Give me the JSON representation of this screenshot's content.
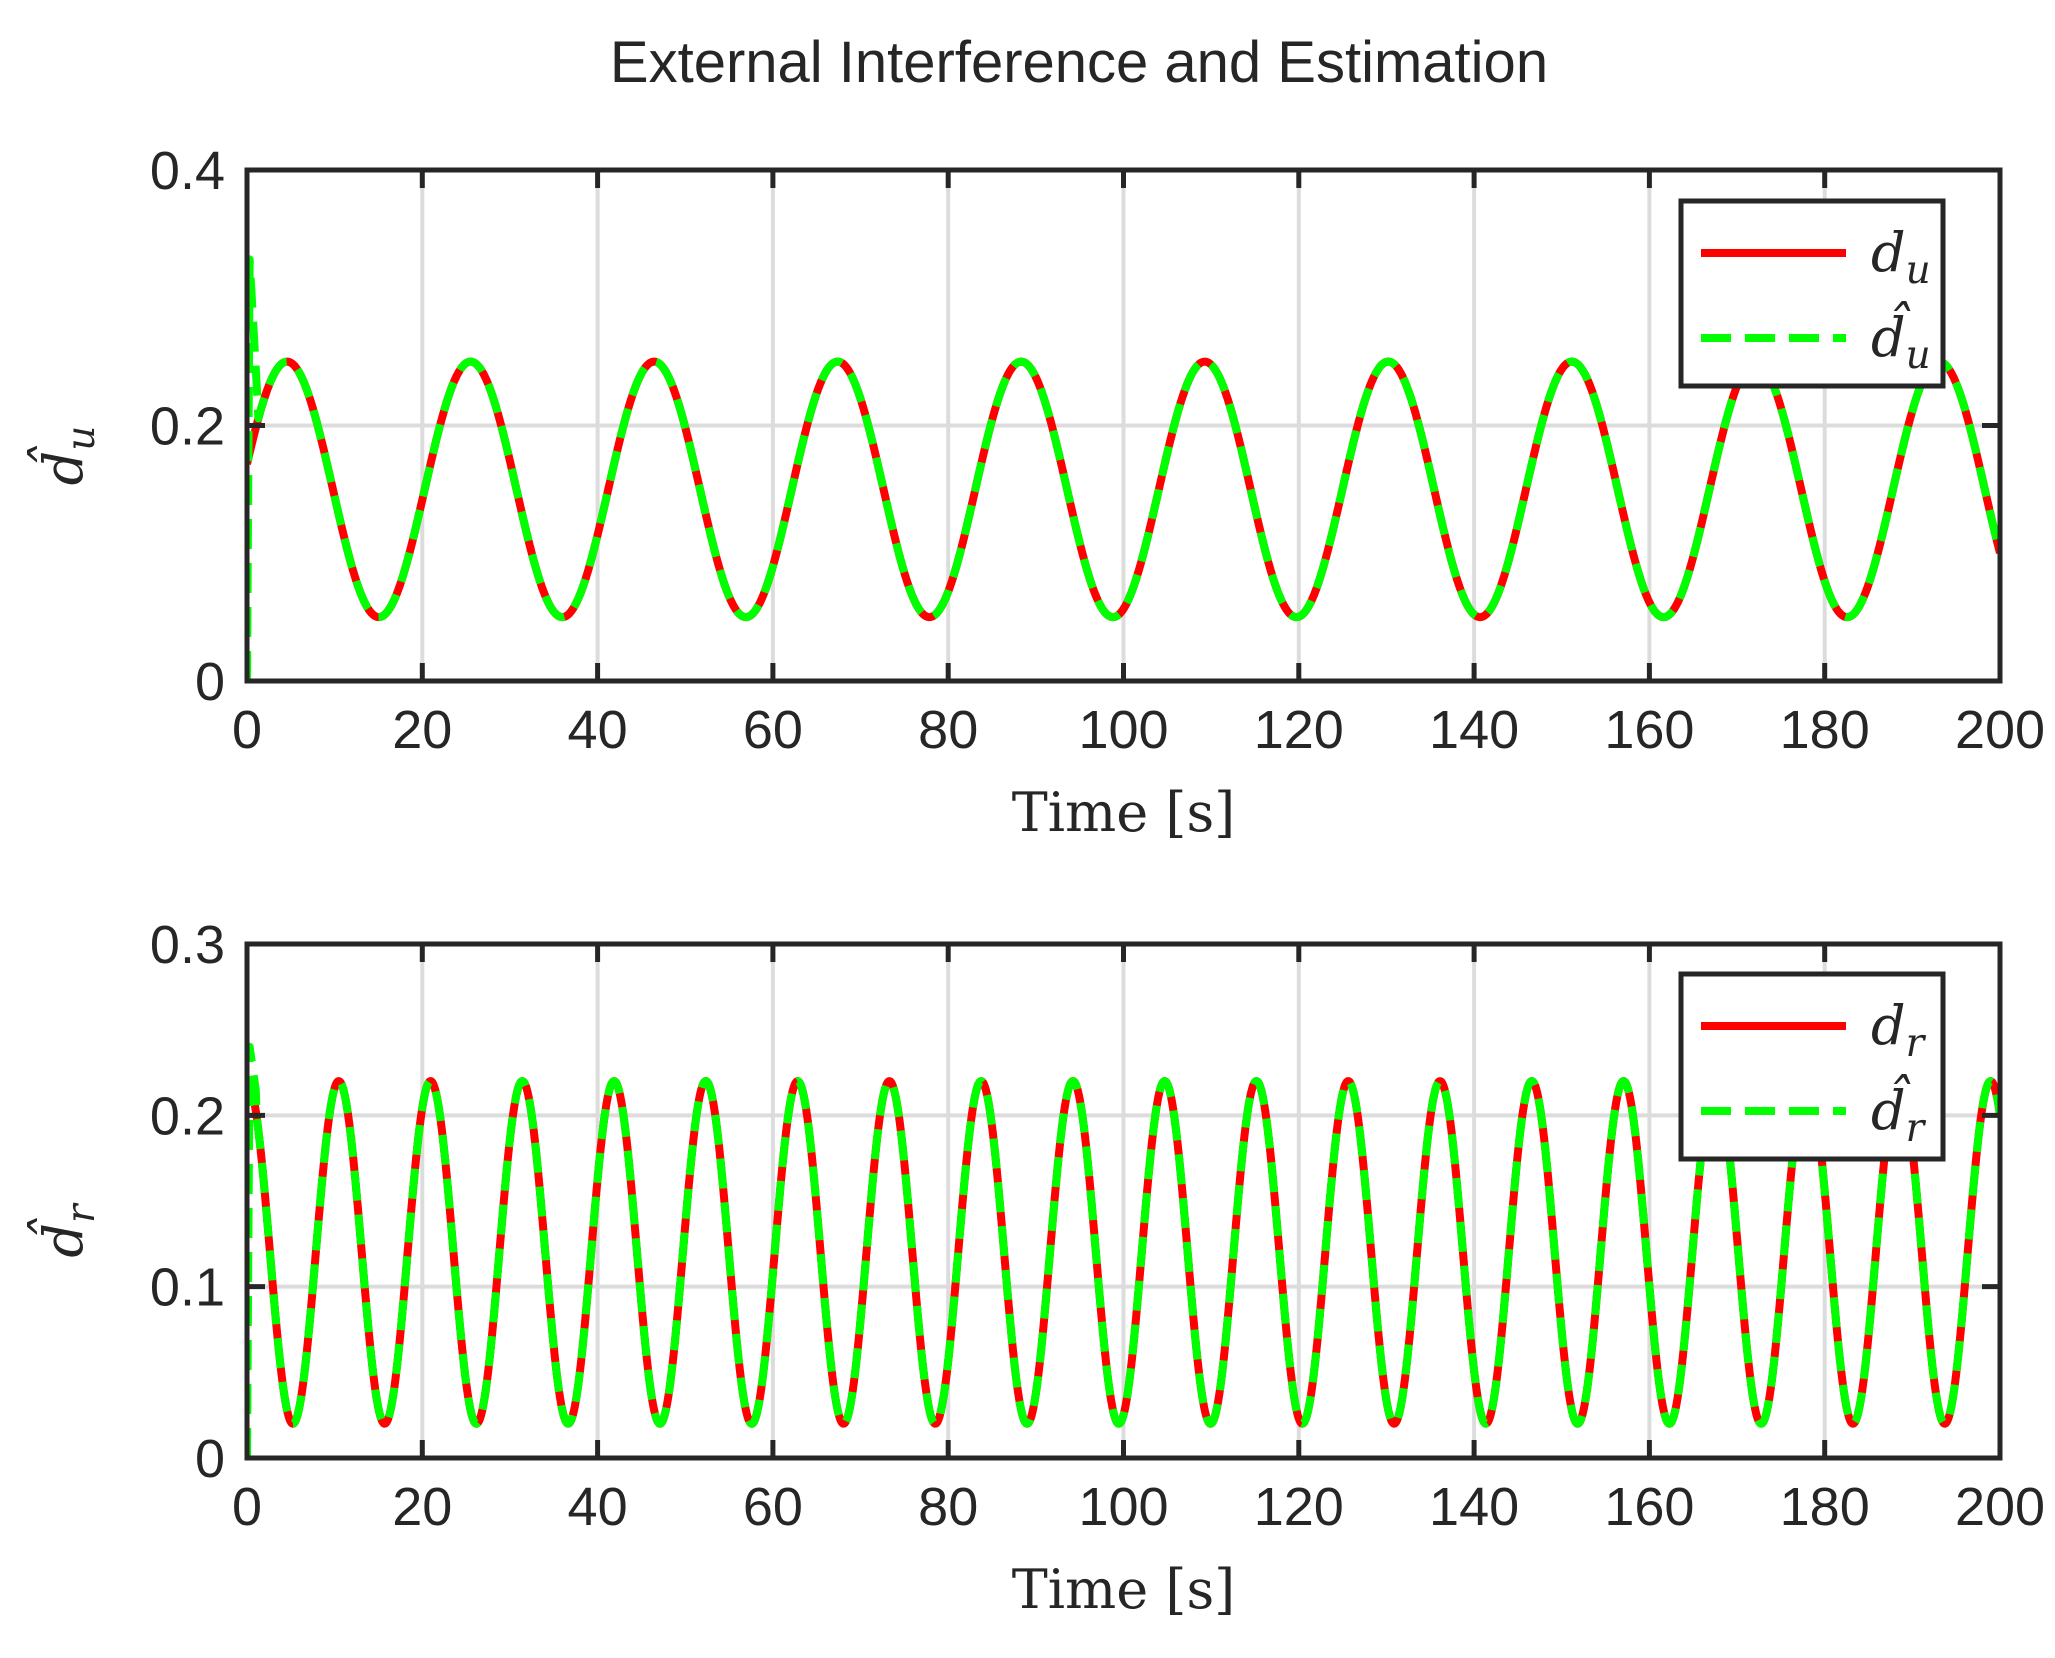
{
  "figure": {
    "title": "External Interference and Estimation"
  },
  "chart_data": [
    {
      "type": "line",
      "xlabel": "Time [s]",
      "ylabel": {
        "base": "d",
        "sub": "u",
        "hat": true
      },
      "xlim": [
        0,
        200
      ],
      "ylim": [
        0,
        0.4
      ],
      "xticks": [
        0,
        20,
        40,
        60,
        80,
        100,
        120,
        140,
        160,
        180,
        200
      ],
      "yticks": [
        0,
        0.2,
        0.4
      ],
      "xtick_labels": [
        "0",
        "20",
        "40",
        "60",
        "80",
        "100",
        "120",
        "140",
        "160",
        "180",
        "200"
      ],
      "ytick_labels": [
        "0",
        "0.2",
        "0.4"
      ],
      "grid": true,
      "legend_position": "top-right",
      "model": {
        "offset": 0.15,
        "amplitude": 0.1,
        "period": 20.94,
        "phase": 0.2
      },
      "series": [
        {
          "name": "d_u",
          "label": {
            "base": "d",
            "sub": "u",
            "hat": false
          },
          "color": "#ff0000",
          "style": "solid",
          "description": "0.15 + 0.1*sin(0.3*t + 0.2)"
        },
        {
          "name": "d_u_hat",
          "label": {
            "base": "d",
            "sub": "u",
            "hat": true
          },
          "color": "#00ff00",
          "style": "dashed",
          "initial_transient": [
            [
              0,
              0
            ],
            [
              0.3,
              0.33
            ],
            [
              1.2,
              0.22
            ]
          ],
          "description": "estimate: quick transient near t=0 then tracks d_u"
        }
      ]
    },
    {
      "type": "line",
      "xlabel": "Time [s]",
      "ylabel": {
        "base": "d",
        "sub": "r",
        "hat": true
      },
      "xlim": [
        0,
        200
      ],
      "ylim": [
        0,
        0.3
      ],
      "xticks": [
        0,
        20,
        40,
        60,
        80,
        100,
        120,
        140,
        160,
        180,
        200
      ],
      "yticks": [
        0,
        0.1,
        0.2,
        0.3
      ],
      "xtick_labels": [
        "0",
        "20",
        "40",
        "60",
        "80",
        "100",
        "120",
        "140",
        "160",
        "180",
        "200"
      ],
      "ytick_labels": [
        "0",
        "0.1",
        "0.2",
        "0.3"
      ],
      "grid": true,
      "legend_position": "top-right",
      "model": {
        "offset": 0.12,
        "amplitude": 0.1,
        "period": 10.47,
        "phase": 1.57
      },
      "series": [
        {
          "name": "d_r",
          "label": {
            "base": "d",
            "sub": "r",
            "hat": false
          },
          "color": "#ff0000",
          "style": "solid",
          "description": "0.12 + 0.1*cos(0.6*t)"
        },
        {
          "name": "d_r_hat",
          "label": {
            "base": "d",
            "sub": "r",
            "hat": true
          },
          "color": "#00ff00",
          "style": "dashed",
          "initial_transient": [
            [
              0,
              0
            ],
            [
              0.3,
              0.24
            ],
            [
              1.0,
              0.215
            ]
          ],
          "description": "estimate: quick transient near t=0 then tracks d_r"
        }
      ]
    }
  ]
}
